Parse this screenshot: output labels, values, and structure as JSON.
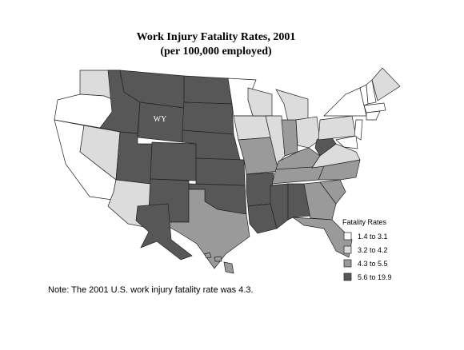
{
  "title": "Work Injury Fatality Rates, 2001",
  "subtitle": "(per 100,000 employed)",
  "map_label": "WY",
  "legend": {
    "title": "Fatality Rates",
    "items": [
      {
        "label": "1.4 to 3.1",
        "color": "#ffffff"
      },
      {
        "label": "3.2 to 4.2",
        "color": "#dcdcdc"
      },
      {
        "label": "4.3 to 5.5",
        "color": "#9a9a9a"
      },
      {
        "label": "5.6 to 19.9",
        "color": "#575757"
      }
    ]
  },
  "note": "Note: The 2001 U.S. work injury fatality rate was 4.3."
}
